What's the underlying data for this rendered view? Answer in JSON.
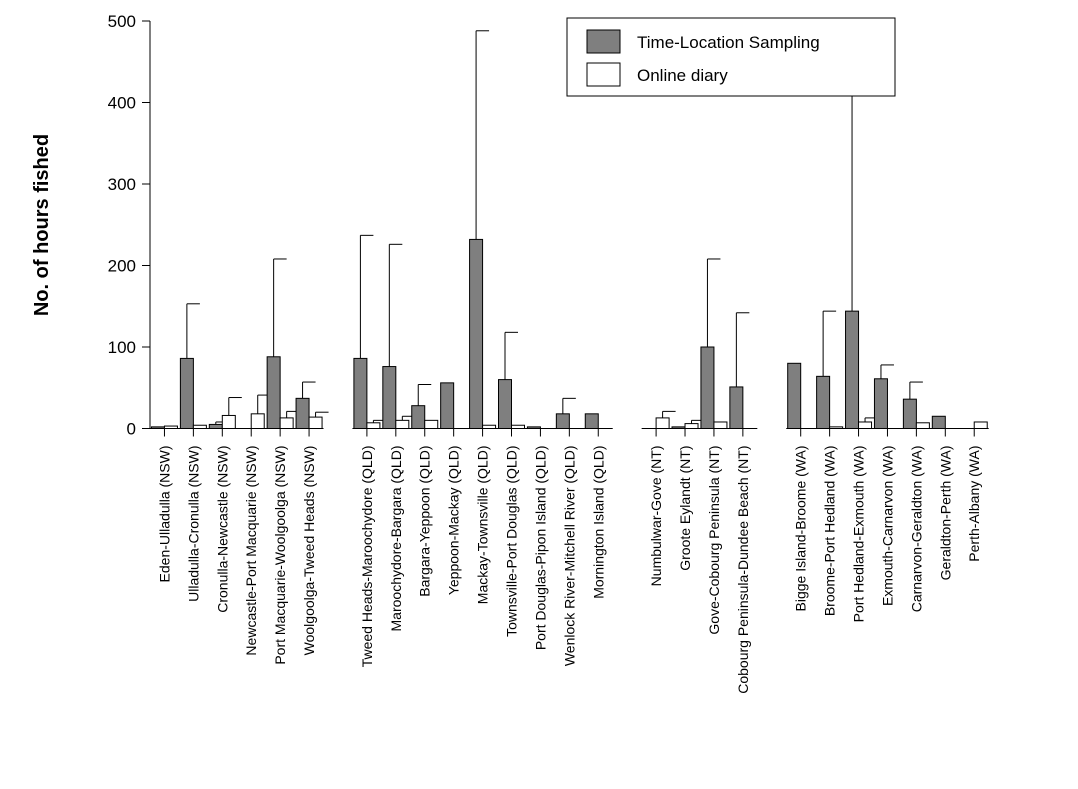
{
  "chart_data": {
    "type": "bar",
    "ylabel": "No. of hours fished",
    "ylim": [
      0,
      500
    ],
    "yticks": [
      0,
      100,
      200,
      300,
      400,
      500
    ],
    "legend_position": "top-right",
    "grid": false,
    "groups": [
      {
        "categories": [
          "Eden-Ulladulla (NSW)",
          "Ulladulla-Cronulla (NSW)",
          "Cronulla-Newcastle (NSW)",
          "Newcastle-Port Macquarie (NSW)",
          "Port Macquarie-Woolgoolga (NSW)",
          "Woolgoolga-Tweed Heads (NSW)"
        ]
      },
      {
        "categories": [
          "Tweed Heads-Maroochydore (QLD)",
          "Maroochydore-Bargara (QLD)",
          "Bargara-Yeppoon (QLD)",
          "Yeppoon-Mackay (QLD)",
          "Mackay-Townsville (QLD)",
          "Townsville-Port Douglas (QLD)",
          "Port Douglas-Pipon Island (QLD)",
          "Wenlock River-Mitchell River (QLD)",
          "Mornington Island (QLD)"
        ]
      },
      {
        "categories": [
          "Numbulwar-Gove (NT)",
          "Groote Eylandt (NT)",
          "Gove-Cobourg Peninsula (NT)",
          "Cobourg Peninsula-Dundee Beach (NT)"
        ]
      },
      {
        "categories": [
          "Bigge Island-Broome (WA)",
          "Broome-Port Hedland (WA)",
          "Port Hedland-Exmouth (WA)",
          "Exmouth-Carnarvon (WA)",
          "Carnarvon-Geraldton (WA)",
          "Geraldton-Perth (WA)",
          "Perth-Albany (WA)"
        ]
      }
    ],
    "series": [
      {
        "name": "Time-Location Sampling",
        "color": "#7f7f7f",
        "values": [
          2,
          86,
          5,
          0,
          88,
          37,
          86,
          76,
          28,
          56,
          232,
          60,
          2,
          18,
          18,
          0,
          2,
          100,
          51,
          80,
          64,
          144,
          61,
          36,
          15,
          0
        ],
        "errors": [
          0,
          67,
          3,
          0,
          120,
          20,
          151,
          150,
          26,
          0,
          256,
          58,
          0,
          19,
          0,
          0,
          0,
          108,
          91,
          0,
          80,
          306,
          17,
          21,
          0,
          0
        ]
      },
      {
        "name": "Online diary",
        "color": "#ffffff",
        "values": [
          3,
          4,
          16,
          18,
          13,
          14,
          7,
          10,
          10,
          0,
          4,
          4,
          0,
          0,
          0,
          13,
          6,
          8,
          0,
          0,
          2,
          8,
          0,
          7,
          0,
          8
        ],
        "errors": [
          0,
          0,
          22,
          23,
          8,
          6,
          3,
          5,
          0,
          0,
          0,
          0,
          0,
          0,
          0,
          8,
          4,
          0,
          0,
          0,
          0,
          5,
          0,
          0,
          0,
          0
        ]
      }
    ]
  }
}
